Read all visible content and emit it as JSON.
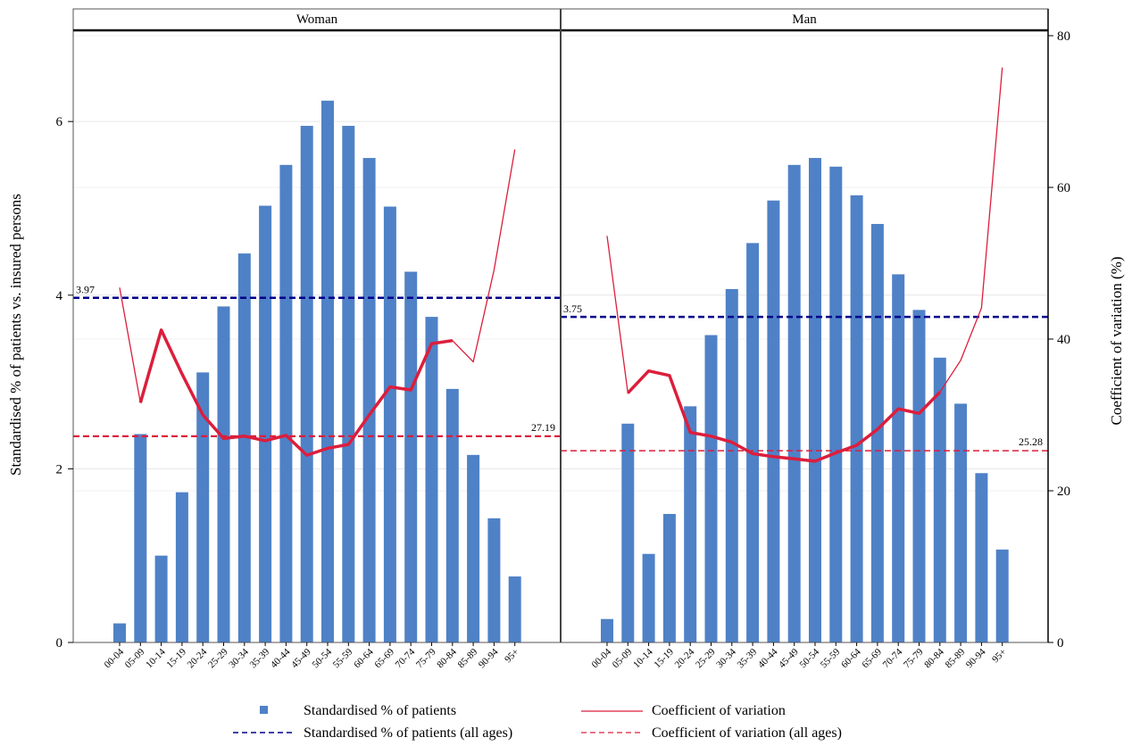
{
  "chart_data": {
    "type": "bar",
    "panels": [
      "Woman",
      "Man"
    ],
    "categories": [
      "00-04",
      "05-09",
      "10-14",
      "15-19",
      "20-24",
      "25-29",
      "30-34",
      "35-39",
      "40-44",
      "45-49",
      "50-54",
      "55-59",
      "60-64",
      "65-69",
      "70-74",
      "75-79",
      "80-84",
      "85-89",
      "90-94",
      "95+"
    ],
    "ylabel": "Standardised % of patients vs. insured persons",
    "y2label": "Coefficient of variation (%)",
    "ylim": [
      0,
      7.05
    ],
    "yticks": [
      0,
      2,
      4,
      6
    ],
    "y2lim": [
      0,
      80
    ],
    "y2ticks": [
      0,
      20,
      40,
      60,
      80
    ],
    "grid": true,
    "legend_position": "bottom",
    "colors": {
      "bars": "#4f81c7",
      "cv_line": "#dc1e3c",
      "pct_ref": "#00008b",
      "cv_ref": "#dc1e3c"
    },
    "series": [
      {
        "name": "Standardised % of patients",
        "type": "bar",
        "axis": "left",
        "values": {
          "Woman": [
            0.22,
            2.4,
            1.0,
            1.73,
            3.11,
            3.87,
            4.48,
            5.03,
            5.5,
            5.95,
            6.24,
            5.95,
            5.58,
            5.02,
            4.27,
            3.75,
            2.92,
            2.16,
            1.43,
            0.76
          ],
          "Man": [
            0.27,
            2.52,
            1.02,
            1.48,
            2.72,
            3.54,
            4.07,
            4.6,
            5.09,
            5.5,
            5.58,
            5.48,
            5.15,
            4.82,
            4.24,
            3.83,
            3.28,
            2.75,
            1.95,
            1.07
          ]
        }
      },
      {
        "name": "Coefficient of variation",
        "type": "line",
        "axis": "right",
        "values": {
          "Woman": [
            46.8,
            31.6,
            41.2,
            35.4,
            30.0,
            26.9,
            27.2,
            26.6,
            27.3,
            24.7,
            25.6,
            26.1,
            30.0,
            33.7,
            33.3,
            39.4,
            39.8,
            37.0,
            49.1,
            65.0
          ],
          "Man": [
            53.6,
            32.9,
            35.8,
            35.2,
            27.7,
            27.2,
            26.4,
            24.9,
            24.5,
            24.2,
            23.9,
            25.0,
            26.0,
            28.1,
            30.8,
            30.2,
            33.0,
            37.2,
            44.1,
            75.8
          ]
        },
        "thick_range": {
          "Woman": [
            1,
            16
          ],
          "Man": [
            1,
            16
          ]
        }
      },
      {
        "name": "Standardised % of patients (all ages)",
        "type": "reference",
        "axis": "left",
        "values": {
          "Woman": 3.97,
          "Man": 3.75
        },
        "labels": {
          "Woman": "3.97",
          "Man": "3.75"
        }
      },
      {
        "name": "Coefficient of variation (all ages)",
        "type": "reference",
        "axis": "right",
        "values": {
          "Woman": 27.19,
          "Man": 25.28
        },
        "labels": {
          "Woman": "27.19",
          "Man": "25.28"
        }
      }
    ]
  },
  "legend": {
    "bars": "Standardised % of patients",
    "cv_line": "Coefficient of variation",
    "pct_ref": "Standardised % of patients (all ages)",
    "cv_ref": "Coefficient of variation (all ages)"
  }
}
